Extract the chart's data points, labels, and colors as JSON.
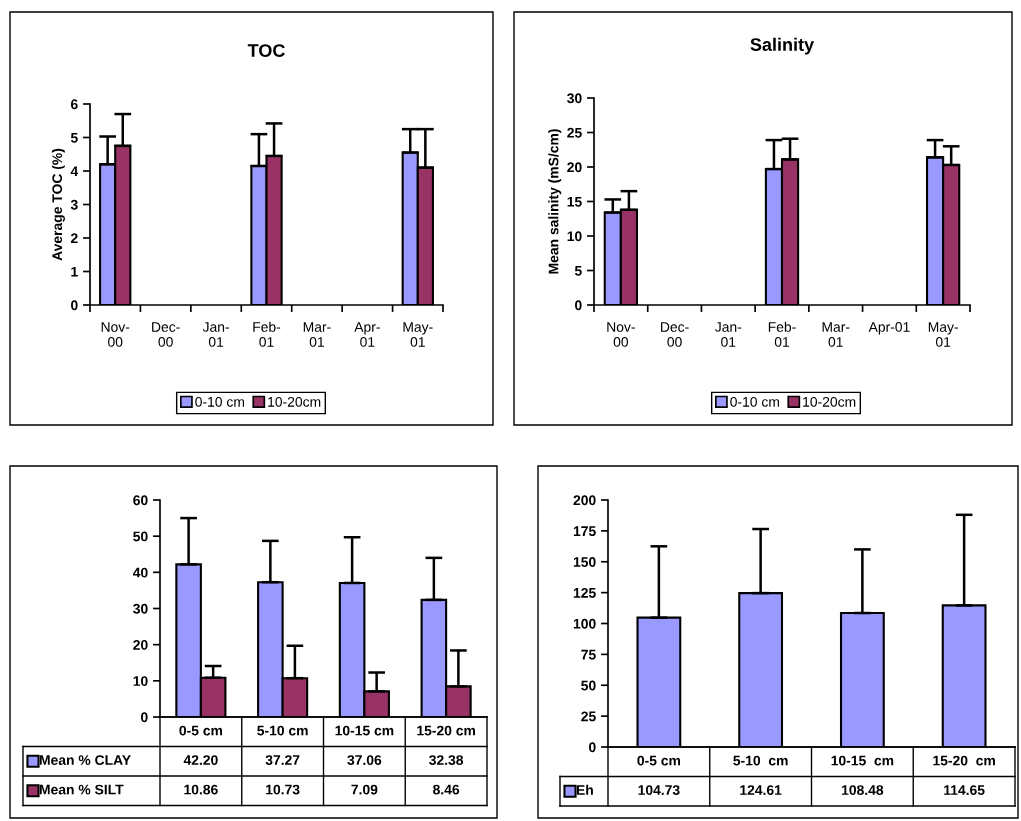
{
  "chart_data": [
    {
      "type": "bar",
      "title": "TOC",
      "ylabel": "Average TOC (%)",
      "categories": [
        "Nov-\n00",
        "Dec-\n00",
        "Jan-\n01",
        "Feb-\n01",
        "Mar-\n01",
        "Apr-\n01",
        "May-\n01"
      ],
      "ylim": [
        0,
        6
      ],
      "yticks": [
        0,
        1,
        2,
        3,
        4,
        5,
        6
      ],
      "legend": "bottom",
      "grid": false,
      "series": [
        {
          "name": "0-10 cm",
          "color": "#9999ff",
          "values": [
            4.2,
            null,
            null,
            4.15,
            null,
            null,
            4.55
          ],
          "errors": [
            [
              4.2,
              5.03
            ],
            null,
            null,
            [
              4.15,
              5.1
            ],
            null,
            null,
            [
              4.55,
              5.25
            ]
          ]
        },
        {
          "name": "10-20cm",
          "color": "#993366",
          "values": [
            4.75,
            null,
            null,
            4.45,
            null,
            null,
            4.1
          ],
          "errors": [
            [
              4.75,
              5.7
            ],
            null,
            null,
            [
              4.45,
              5.42
            ],
            null,
            null,
            [
              4.1,
              5.25
            ]
          ]
        }
      ]
    },
    {
      "type": "bar",
      "title": "Salinity",
      "ylabel": "Mean salinity (mS/cm)",
      "categories": [
        "Nov-\n00",
        "Dec-\n00",
        "Jan-\n01",
        "Feb-\n01",
        "Mar-\n01",
        "Apr-01",
        "May-\n01"
      ],
      "ylim": [
        0,
        30
      ],
      "yticks": [
        0,
        5,
        10,
        15,
        20,
        25,
        30
      ],
      "legend": "bottom",
      "grid": false,
      "series": [
        {
          "name": "0-10 cm",
          "color": "#9999ff",
          "values": [
            13.4,
            null,
            null,
            19.7,
            null,
            null,
            21.4
          ],
          "errors": [
            [
              13.4,
              15.3
            ],
            null,
            null,
            [
              19.7,
              23.9
            ],
            null,
            null,
            [
              21.4,
              23.9
            ]
          ]
        },
        {
          "name": "10-20cm",
          "color": "#993366",
          "values": [
            13.8,
            null,
            null,
            21.1,
            null,
            null,
            20.3
          ],
          "errors": [
            [
              13.8,
              16.5
            ],
            null,
            null,
            [
              21.1,
              24.1
            ],
            null,
            null,
            [
              20.3,
              23.0
            ]
          ]
        }
      ]
    },
    {
      "type": "bar",
      "categories": [
        "0-5 cm",
        "5-10 cm",
        "10-15 cm",
        "15-20 cm"
      ],
      "ylim": [
        0,
        60
      ],
      "yticks": [
        0,
        10,
        20,
        30,
        40,
        50,
        60
      ],
      "grid": false,
      "legend": "left",
      "series": [
        {
          "name": "Mean % CLAY",
          "color": "#9999ff",
          "values": [
            42.2,
            37.27,
            37.06,
            32.38
          ],
          "value_labels": [
            "42.20",
            "37.27",
            "37.06",
            "32.38"
          ],
          "errors": [
            [
              42.2,
              55
            ],
            [
              37.27,
              48.7
            ],
            [
              37.06,
              49.7
            ],
            [
              32.38,
              44
            ]
          ]
        },
        {
          "name": "Mean % SILT",
          "color": "#993366",
          "values": [
            10.86,
            10.73,
            7.09,
            8.46
          ],
          "value_labels": [
            "10.86",
            "10.73",
            "7.09",
            "8.46"
          ],
          "errors": [
            [
              10.86,
              14.1
            ],
            [
              10.73,
              19.7
            ],
            [
              7.09,
              12.3
            ],
            [
              8.46,
              18.4
            ]
          ]
        }
      ]
    },
    {
      "type": "bar",
      "categories": [
        "0-5 cm",
        "5-10  cm",
        "10-15  cm",
        "15-20  cm"
      ],
      "ylim": [
        0,
        200
      ],
      "yticks": [
        0,
        25,
        50,
        75,
        100,
        125,
        150,
        175,
        200
      ],
      "grid": false,
      "legend": "left",
      "series": [
        {
          "name": "Eh",
          "color": "#9999ff",
          "values": [
            104.73,
            124.61,
            108.48,
            114.65
          ],
          "value_labels": [
            "104.73",
            "124.61",
            "108.48",
            "114.65"
          ],
          "errors": [
            [
              104.73,
              162.5
            ],
            [
              124.61,
              176.5
            ],
            [
              108.48,
              160
            ],
            [
              114.65,
              188
            ]
          ]
        }
      ]
    }
  ]
}
